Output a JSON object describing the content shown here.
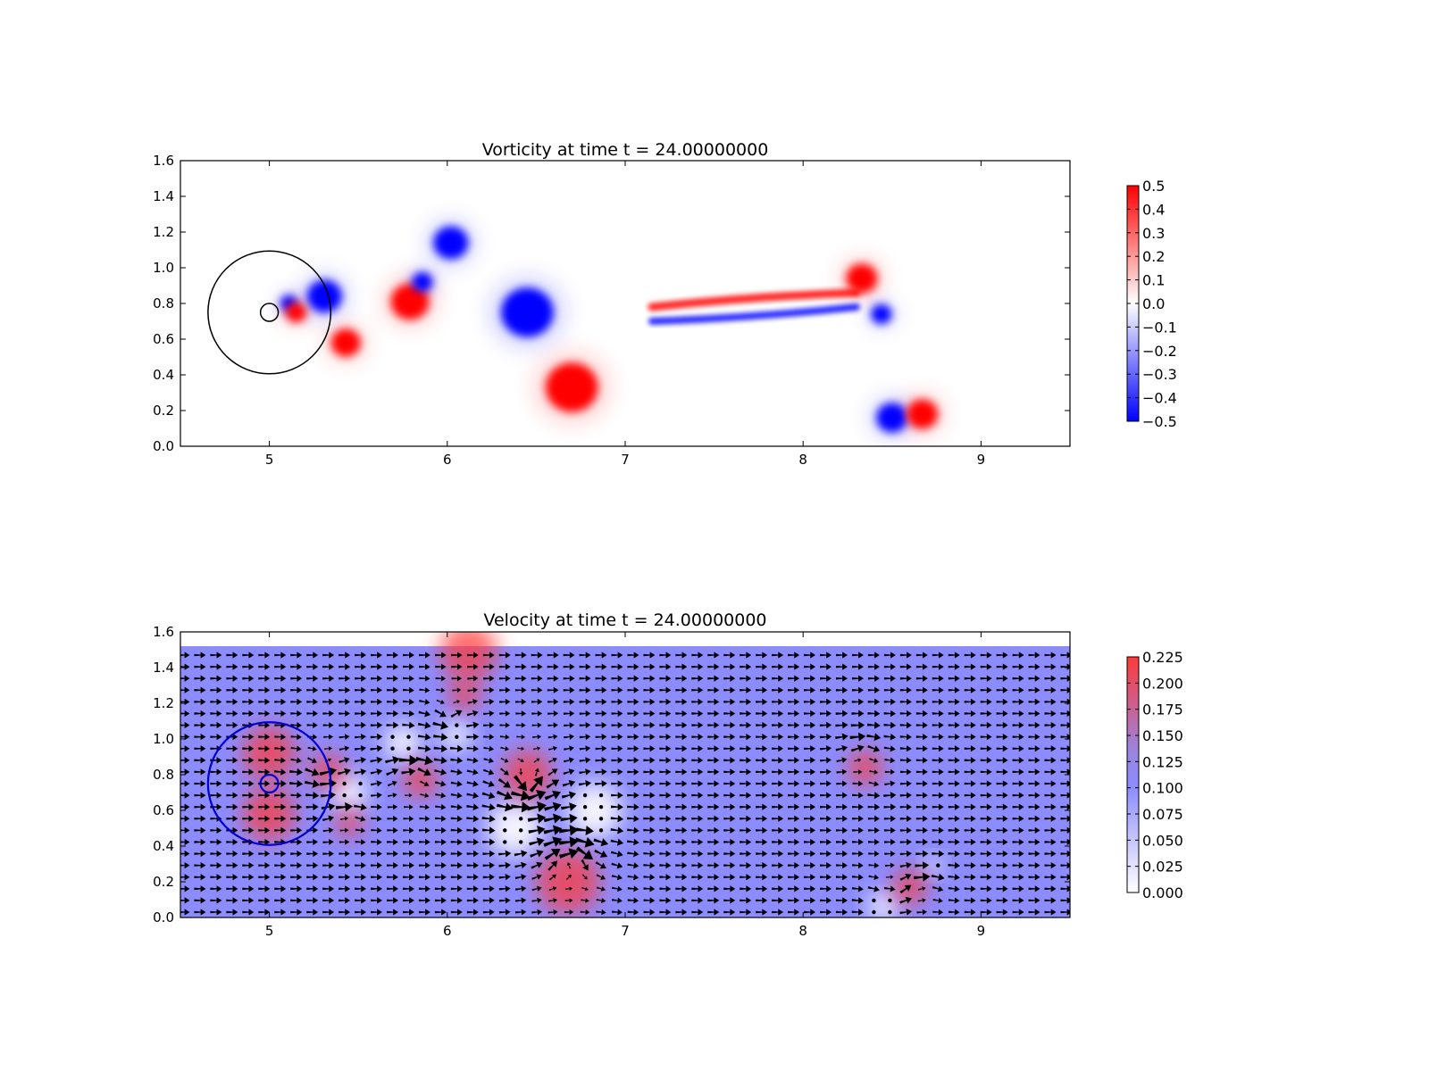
{
  "chart_data": [
    {
      "type": "heatmap",
      "title": "Vorticity at time t =    24.00000000",
      "xlabel": "",
      "ylabel": "",
      "xlim": [
        4.5,
        9.5
      ],
      "ylim": [
        0.0,
        1.6
      ],
      "xticks": [
        "5",
        "6",
        "7",
        "8",
        "9"
      ],
      "xtick_values": [
        5,
        6,
        7,
        8,
        9
      ],
      "yticks": [
        "0.0",
        "0.2",
        "0.4",
        "0.6",
        "0.8",
        "1.0",
        "1.2",
        "1.4",
        "1.6"
      ],
      "ytick_values": [
        0.0,
        0.2,
        0.4,
        0.6,
        0.8,
        1.0,
        1.2,
        1.4,
        1.6
      ],
      "colormap": "bwr",
      "colors": {
        "negative": "#0000ff",
        "zero": "#ffffff",
        "positive": "#ff0000"
      },
      "colorbar": {
        "vmin": -0.5,
        "vmax": 0.5,
        "ticks": [
          "−0.5",
          "−0.4",
          "−0.3",
          "−0.2",
          "−0.1",
          "0.0",
          "0.1",
          "0.2",
          "0.3",
          "0.4",
          "0.5"
        ],
        "tick_values": [
          -0.5,
          -0.4,
          -0.3,
          -0.2,
          -0.1,
          0.0,
          0.1,
          0.2,
          0.3,
          0.4,
          0.5
        ]
      },
      "vortices": [
        {
          "x": 5.43,
          "y": 0.58,
          "r": 0.085,
          "sign": 1
        },
        {
          "x": 5.31,
          "y": 0.84,
          "r": 0.1,
          "sign": -1
        },
        {
          "x": 5.11,
          "y": 0.8,
          "r": 0.05,
          "sign": -1
        },
        {
          "x": 5.15,
          "y": 0.75,
          "r": 0.06,
          "sign": 1
        },
        {
          "x": 5.79,
          "y": 0.81,
          "r": 0.11,
          "sign": 1
        },
        {
          "x": 5.86,
          "y": 0.92,
          "r": 0.06,
          "sign": -1
        },
        {
          "x": 6.02,
          "y": 1.14,
          "r": 0.1,
          "sign": -1
        },
        {
          "x": 6.45,
          "y": 0.75,
          "r": 0.15,
          "sign": -1
        },
        {
          "x": 6.7,
          "y": 0.33,
          "r": 0.15,
          "sign": 1
        },
        {
          "x": 8.33,
          "y": 0.94,
          "r": 0.09,
          "sign": 1
        },
        {
          "x": 8.44,
          "y": 0.74,
          "r": 0.06,
          "sign": -1
        },
        {
          "x": 8.5,
          "y": 0.16,
          "r": 0.09,
          "sign": -1
        },
        {
          "x": 8.67,
          "y": 0.18,
          "r": 0.09,
          "sign": 1
        }
      ],
      "shear_layer": {
        "x_start": 7.15,
        "y_start": 0.74,
        "x_end": 8.3,
        "y_end": 0.82,
        "positive_offset": 0.04,
        "negative_offset": -0.04
      },
      "circles": [
        {
          "cx": 5.0,
          "cy": 0.75,
          "r": 0.345,
          "color": "#000000"
        },
        {
          "cx": 5.0,
          "cy": 0.75,
          "r": 0.05,
          "color": "#000000"
        }
      ]
    },
    {
      "type": "heatmap",
      "title": "Velocity at time t =    24.00000000",
      "xlabel": "",
      "ylabel": "",
      "xlim": [
        4.5,
        9.5
      ],
      "ylim": [
        0.0,
        1.6
      ],
      "data_ylim": [
        0.0,
        1.52
      ],
      "xticks": [
        "5",
        "6",
        "7",
        "8",
        "9"
      ],
      "xtick_values": [
        5,
        6,
        7,
        8,
        9
      ],
      "yticks": [
        "0.0",
        "0.2",
        "0.4",
        "0.6",
        "0.8",
        "1.0",
        "1.2",
        "1.4",
        "1.6"
      ],
      "ytick_values": [
        0.0,
        0.2,
        0.4,
        0.6,
        0.8,
        1.0,
        1.2,
        1.4,
        1.6
      ],
      "colormap": "coolwarm-white-blue-red",
      "colors": {
        "low": "#ffffff",
        "mid": "#8c8cff",
        "high": "#ff3a3a",
        "arrow": "#000000"
      },
      "background_speed": 0.1,
      "colorbar": {
        "vmin": 0.0,
        "vmax": 0.225,
        "ticks": [
          "0.000",
          "0.025",
          "0.050",
          "0.075",
          "0.100",
          "0.125",
          "0.150",
          "0.175",
          "0.200",
          "0.225"
        ],
        "tick_values": [
          0.0,
          0.025,
          0.05,
          0.075,
          0.1,
          0.125,
          0.15,
          0.175,
          0.2,
          0.225
        ]
      },
      "quiver_grid": {
        "x_min": 4.52,
        "x_max": 9.48,
        "nx": 56,
        "y_min": 0.03,
        "y_max": 1.47,
        "ny": 23
      },
      "high_speed_regions": [
        {
          "x": 6.12,
          "y": 1.49,
          "r": 0.16
        },
        {
          "x": 6.1,
          "y": 1.25,
          "r": 0.09
        },
        {
          "x": 5.0,
          "y": 0.92,
          "r": 0.15
        },
        {
          "x": 5.0,
          "y": 0.58,
          "r": 0.15
        },
        {
          "x": 5.33,
          "y": 0.82,
          "r": 0.1
        },
        {
          "x": 5.45,
          "y": 0.53,
          "r": 0.08
        },
        {
          "x": 5.85,
          "y": 0.77,
          "r": 0.1
        },
        {
          "x": 6.45,
          "y": 0.8,
          "r": 0.14
        },
        {
          "x": 6.68,
          "y": 0.2,
          "r": 0.18
        },
        {
          "x": 8.35,
          "y": 0.84,
          "r": 0.1
        },
        {
          "x": 8.6,
          "y": 0.17,
          "r": 0.1
        }
      ],
      "low_speed_regions": [
        {
          "x": 5.75,
          "y": 0.98,
          "r": 0.1
        },
        {
          "x": 6.05,
          "y": 1.02,
          "r": 0.08
        },
        {
          "x": 5.45,
          "y": 0.7,
          "r": 0.1
        },
        {
          "x": 6.38,
          "y": 0.5,
          "r": 0.15
        },
        {
          "x": 6.83,
          "y": 0.6,
          "r": 0.15
        },
        {
          "x": 8.45,
          "y": 0.06,
          "r": 0.08
        },
        {
          "x": 8.73,
          "y": 0.29,
          "r": 0.05
        }
      ],
      "circles": [
        {
          "cx": 5.0,
          "cy": 0.75,
          "r": 0.345,
          "color": "#0000cc"
        },
        {
          "cx": 5.0,
          "cy": 0.75,
          "r": 0.05,
          "color": "#0000cc"
        }
      ]
    }
  ]
}
